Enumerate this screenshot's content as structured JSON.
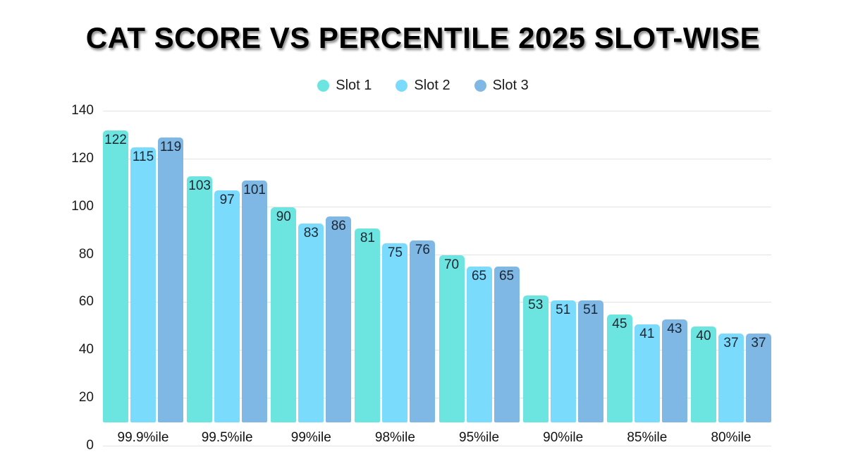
{
  "title": "CAT SCORE VS PERCENTILE 2025 SLOT-WISE",
  "chart_data": {
    "type": "bar",
    "title": "CAT SCORE VS PERCENTILE 2025 SLOT-WISE",
    "categories": [
      "99.9%ile",
      "99.5%ile",
      "99%ile",
      "98%ile",
      "95%ile",
      "90%ile",
      "85%ile",
      "80%ile"
    ],
    "series": [
      {
        "name": "Slot 1",
        "color": "#6CE5E0",
        "values": [
          122,
          103,
          90,
          81,
          70,
          53,
          45,
          40
        ]
      },
      {
        "name": "Slot 2",
        "color": "#7ADBFC",
        "values": [
          115,
          97,
          83,
          75,
          65,
          51,
          41,
          37
        ]
      },
      {
        "name": "Slot 3",
        "color": "#7FB7E5",
        "values": [
          119,
          101,
          86,
          76,
          65,
          51,
          43,
          37
        ]
      }
    ],
    "xlabel": "",
    "ylabel": "",
    "ylim": [
      0,
      140
    ],
    "yticks": [
      0,
      20,
      40,
      60,
      80,
      100,
      120,
      140
    ],
    "grid": true,
    "legend_position": "top-center",
    "background": "#ffffff",
    "gridline_color": "#e3e3e3"
  }
}
